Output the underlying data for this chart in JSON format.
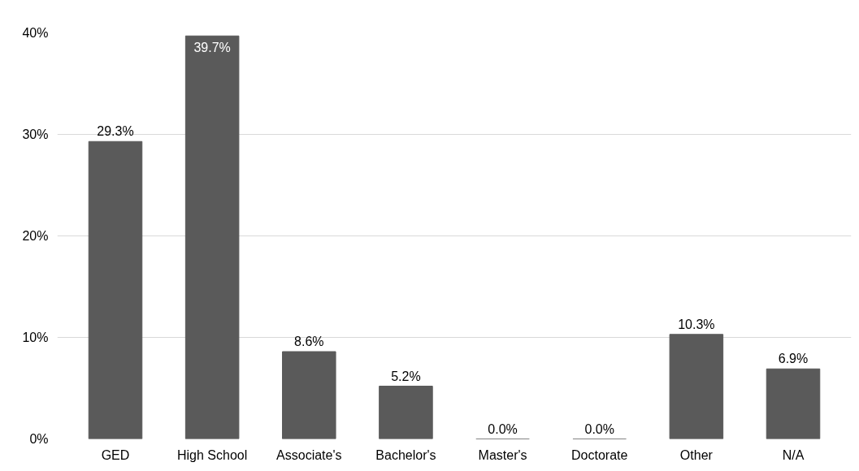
{
  "chart_data": {
    "type": "bar",
    "categories": [
      "GED",
      "High School",
      "Associate's",
      "Bachelor's",
      "Master's",
      "Doctorate",
      "Other",
      "N/A"
    ],
    "values": [
      29.3,
      39.7,
      8.6,
      5.2,
      0.0,
      0.0,
      10.3,
      6.9
    ],
    "value_labels": [
      "29.3%",
      "39.7%",
      "8.6%",
      "5.2%",
      "0.0%",
      "0.0%",
      "10.3%",
      "6.9%"
    ],
    "color": "#5a5a5a",
    "ylim": [
      0,
      40
    ],
    "yticks": [
      {
        "value": 0,
        "label": "0%"
      },
      {
        "value": 10,
        "label": "10%"
      },
      {
        "value": 20,
        "label": "20%"
      },
      {
        "value": 30,
        "label": "30%"
      },
      {
        "value": 40,
        "label": "40%"
      }
    ],
    "grid": "y"
  }
}
